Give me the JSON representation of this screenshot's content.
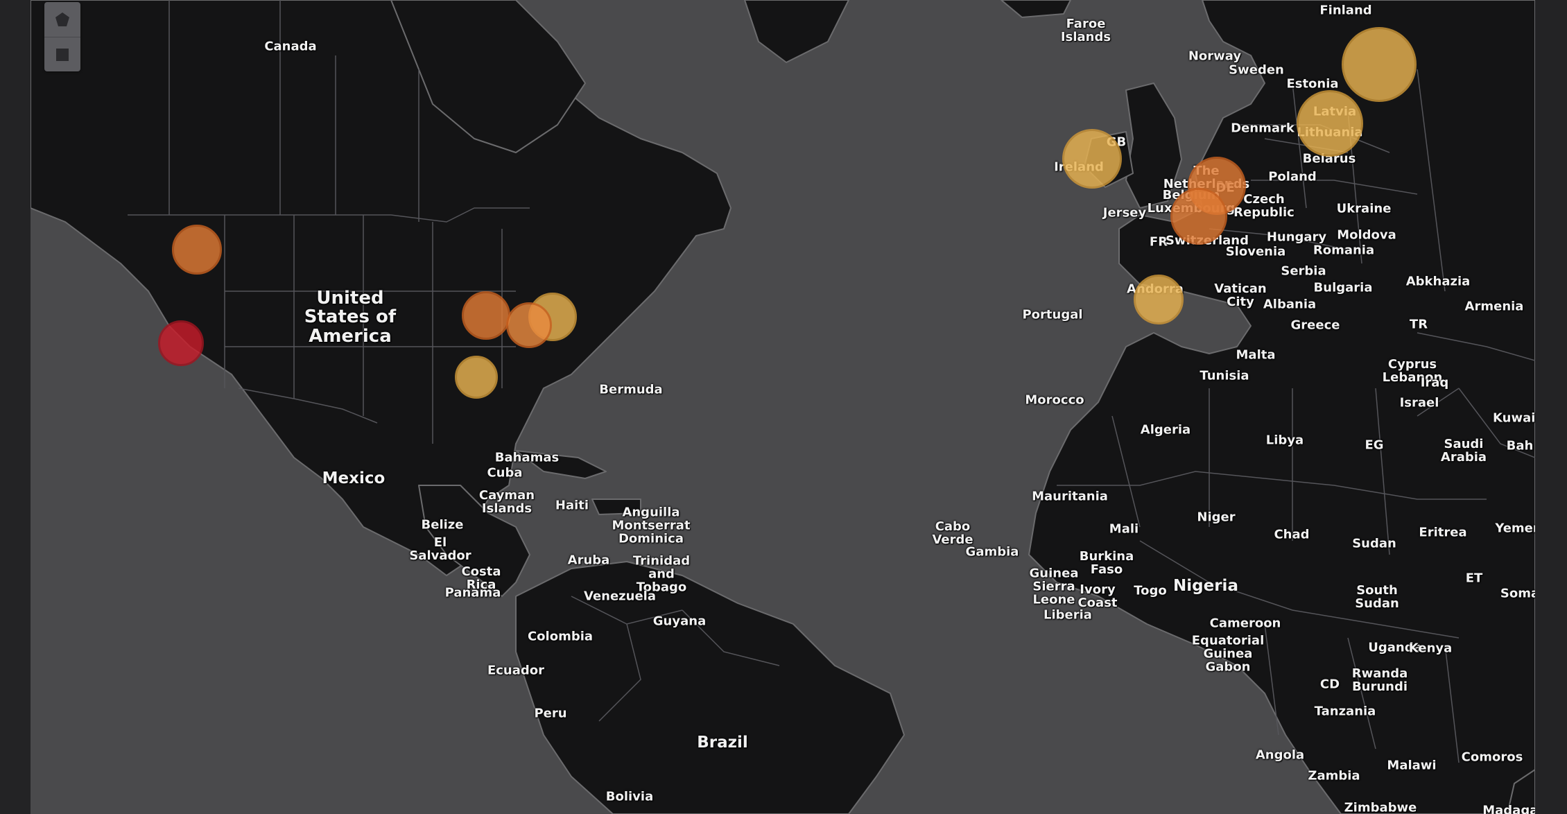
{
  "toolbar": {
    "tools": [
      {
        "icon": "polygon-draw-icon"
      },
      {
        "icon": "rectangle-draw-icon"
      }
    ]
  },
  "map": {
    "colors": {
      "ocean": "#4a4a4c",
      "land": "#141415",
      "border": "#6b6b6d",
      "label": "#f2f2f2"
    },
    "labels": [
      {
        "text": "Canada",
        "size": "l-md"
      },
      {
        "text": "United\nStates of\nAmerica",
        "size": "l-xl"
      },
      {
        "text": "Mexico",
        "size": "l-lg"
      },
      {
        "text": "Bermuda",
        "size": "l-md"
      },
      {
        "text": "Bahamas",
        "size": "l-md"
      },
      {
        "text": "Cuba",
        "size": "l-md"
      },
      {
        "text": "Cayman\nIslands",
        "size": "l-md"
      },
      {
        "text": "Haiti",
        "size": "l-md"
      },
      {
        "text": "Belize",
        "size": "l-md"
      },
      {
        "text": "El\nSalvador",
        "size": "l-md"
      },
      {
        "text": "Costa\nRica",
        "size": "l-md"
      },
      {
        "text": "Panama",
        "size": "l-md"
      },
      {
        "text": "Anguilla\nMontserrat\nDominica",
        "size": "l-md"
      },
      {
        "text": "Aruba",
        "size": "l-md"
      },
      {
        "text": "Trinidad\nand\nTobago",
        "size": "l-md"
      },
      {
        "text": "Venezuela",
        "size": "l-md"
      },
      {
        "text": "Guyana",
        "size": "l-md"
      },
      {
        "text": "Colombia",
        "size": "l-md"
      },
      {
        "text": "Ecuador",
        "size": "l-md"
      },
      {
        "text": "Peru",
        "size": "l-md"
      },
      {
        "text": "Brazil",
        "size": "l-lg"
      },
      {
        "text": "Bolivia",
        "size": "l-md"
      },
      {
        "text": "Cabo\nVerde",
        "size": "l-md"
      },
      {
        "text": "Faroe\nIslands",
        "size": "l-md"
      },
      {
        "text": "Finland",
        "size": "l-md"
      },
      {
        "text": "Norway",
        "size": "l-md"
      },
      {
        "text": "Sweden",
        "size": "l-md"
      },
      {
        "text": "Estonia",
        "size": "l-md"
      },
      {
        "text": "Latvia",
        "size": "l-md"
      },
      {
        "text": "Lithuania",
        "size": "l-md"
      },
      {
        "text": "Denmark",
        "size": "l-md"
      },
      {
        "text": "GB",
        "size": "l-md"
      },
      {
        "text": "Ireland",
        "size": "l-md"
      },
      {
        "text": "Belarus",
        "size": "l-md"
      },
      {
        "text": "The\nNetherlands",
        "size": "l-md"
      },
      {
        "text": "DE",
        "size": "l-md"
      },
      {
        "text": "Poland",
        "size": "l-md"
      },
      {
        "text": "Belgium\nLuxembourg",
        "size": "l-md"
      },
      {
        "text": "Czech\nRepublic",
        "size": "l-md"
      },
      {
        "text": "Ukraine",
        "size": "l-md"
      },
      {
        "text": "Jersey",
        "size": "l-md"
      },
      {
        "text": "FR",
        "size": "l-md"
      },
      {
        "text": "Switzerland",
        "size": "l-md"
      },
      {
        "text": "Hungary",
        "size": "l-md"
      },
      {
        "text": "Moldova",
        "size": "l-md"
      },
      {
        "text": "Slovenia",
        "size": "l-md"
      },
      {
        "text": "Romania",
        "size": "l-md"
      },
      {
        "text": "Serbia",
        "size": "l-md"
      },
      {
        "text": "Andorra",
        "size": "l-md"
      },
      {
        "text": "Vatican\nCity",
        "size": "l-md"
      },
      {
        "text": "Bulgaria",
        "size": "l-md"
      },
      {
        "text": "Abkhazia",
        "size": "l-md"
      },
      {
        "text": "Portugal",
        "size": "l-md"
      },
      {
        "text": "Albania",
        "size": "l-md"
      },
      {
        "text": "Armenia",
        "size": "l-md"
      },
      {
        "text": "Greece",
        "size": "l-md"
      },
      {
        "text": "TR",
        "size": "l-md"
      },
      {
        "text": "Malta",
        "size": "l-md"
      },
      {
        "text": "Cyprus\nLebanon",
        "size": "l-md"
      },
      {
        "text": "Tunisia",
        "size": "l-md"
      },
      {
        "text": "Iraq",
        "size": "l-md"
      },
      {
        "text": "Morocco",
        "size": "l-md"
      },
      {
        "text": "Israel",
        "size": "l-md"
      },
      {
        "text": "Kuwait",
        "size": "l-md"
      },
      {
        "text": "Algeria",
        "size": "l-md"
      },
      {
        "text": "Libya",
        "size": "l-md"
      },
      {
        "text": "EG",
        "size": "l-md"
      },
      {
        "text": "Saudi\nArabia",
        "size": "l-md"
      },
      {
        "text": "Bah",
        "size": "l-md"
      },
      {
        "text": "Mauritania",
        "size": "l-md"
      },
      {
        "text": "Mali",
        "size": "l-md"
      },
      {
        "text": "Niger",
        "size": "l-md"
      },
      {
        "text": "Chad",
        "size": "l-md"
      },
      {
        "text": "Sudan",
        "size": "l-md"
      },
      {
        "text": "Eritrea",
        "size": "l-md"
      },
      {
        "text": "Yemen",
        "size": "l-md"
      },
      {
        "text": "Gambia",
        "size": "l-md"
      },
      {
        "text": "Burkina\nFaso",
        "size": "l-md"
      },
      {
        "text": "Nigeria",
        "size": "l-lg"
      },
      {
        "text": "Guinea\nSierra\nLeone",
        "size": "l-md"
      },
      {
        "text": "Ivory\nCoast",
        "size": "l-md"
      },
      {
        "text": "Togo",
        "size": "l-md"
      },
      {
        "text": "ET",
        "size": "l-md"
      },
      {
        "text": "Liberia",
        "size": "l-md"
      },
      {
        "text": "South\nSudan",
        "size": "l-md"
      },
      {
        "text": "Soma",
        "size": "l-md"
      },
      {
        "text": "Cameroon",
        "size": "l-md"
      },
      {
        "text": "Equatorial\nGuinea\nGabon",
        "size": "l-md"
      },
      {
        "text": "Uganda",
        "size": "l-md"
      },
      {
        "text": "Kenya",
        "size": "l-md"
      },
      {
        "text": "CD",
        "size": "l-md"
      },
      {
        "text": "Rwanda\nBurundi",
        "size": "l-md"
      },
      {
        "text": "Tanzania",
        "size": "l-md"
      },
      {
        "text": "Angola",
        "size": "l-md"
      },
      {
        "text": "Comoros",
        "size": "l-md"
      },
      {
        "text": "Malawi",
        "size": "l-md"
      },
      {
        "text": "Zambia",
        "size": "l-md"
      },
      {
        "text": "Zimbabwe",
        "size": "l-md"
      },
      {
        "text": "Madagasc",
        "size": "l-md"
      }
    ],
    "markers": [
      {
        "fill": "#e07b35",
        "stroke": "#c8601f"
      },
      {
        "fill": "#c81c2a",
        "stroke": "#a2141f"
      },
      {
        "fill": "#e07b35",
        "stroke": "#c8601f"
      },
      {
        "fill": "#e9b351",
        "stroke": "#cf9838"
      },
      {
        "fill": "#e98a3f",
        "stroke": "#c8601f"
      },
      {
        "fill": "#e9b351",
        "stroke": "#cf9838"
      },
      {
        "fill": "#e9b351",
        "stroke": "#cf9838"
      },
      {
        "fill": "#e9b351",
        "stroke": "#cf9838"
      },
      {
        "fill": "#e9b351",
        "stroke": "#cf9838"
      },
      {
        "fill": "#e07b35",
        "stroke": "#c8601f"
      },
      {
        "fill": "#e07b35",
        "stroke": "#c8601f"
      },
      {
        "fill": "#e9b351",
        "stroke": "#cf9838"
      }
    ]
  }
}
